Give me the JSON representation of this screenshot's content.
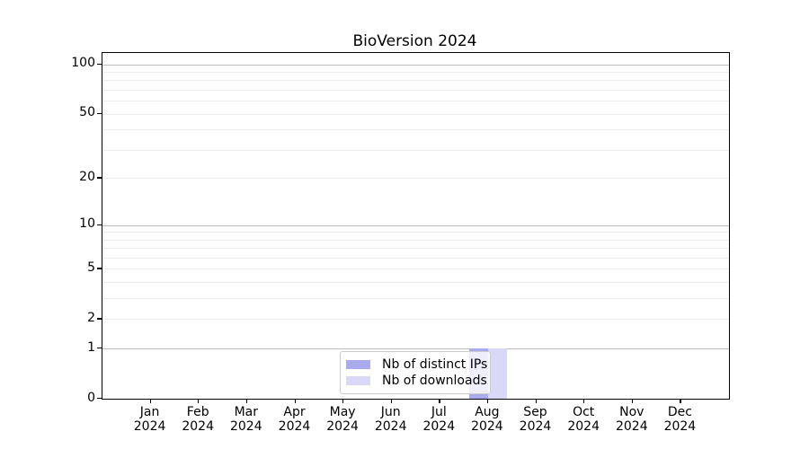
{
  "figure": {
    "background": "#ffffff"
  },
  "chart_data": {
    "type": "bar",
    "title": "BioVersion 2024",
    "categories": [
      "Jan 2024",
      "Feb 2024",
      "Mar 2024",
      "Apr 2024",
      "May 2024",
      "Jun 2024",
      "Jul 2024",
      "Aug 2024",
      "Sep 2024",
      "Oct 2024",
      "Nov 2024",
      "Dec 2024"
    ],
    "series": [
      {
        "name": "Nb of distinct IPs",
        "color": "#aaaaee",
        "values": [
          0,
          0,
          0,
          0,
          0,
          0,
          0,
          1,
          0,
          0,
          0,
          0
        ]
      },
      {
        "name": "Nb of downloads",
        "color": "#d8d8f7",
        "values": [
          0,
          0,
          0,
          0,
          0,
          0,
          0,
          1,
          0,
          0,
          0,
          0
        ]
      }
    ],
    "xlabel": "",
    "ylabel": "",
    "yscale": "log1p",
    "ylim": [
      0,
      117
    ],
    "yticks": [
      0,
      1,
      2,
      5,
      10,
      20,
      50,
      100
    ],
    "ytick_labels": [
      "0",
      "1",
      "2",
      "5",
      "10",
      "20",
      "50",
      "100"
    ],
    "major_gridlines": [
      1,
      10,
      100
    ],
    "minor_gridlines": [
      2,
      3,
      4,
      5,
      6,
      7,
      8,
      9,
      20,
      30,
      40,
      50,
      60,
      70,
      80,
      90
    ],
    "grid": true,
    "legend_position": "lower center",
    "legend_entries": [
      "Nb of distinct IPs",
      "Nb of downloads"
    ],
    "grid_colors": {
      "major": "#bdbdbd",
      "minor": "#ebebeb"
    }
  }
}
